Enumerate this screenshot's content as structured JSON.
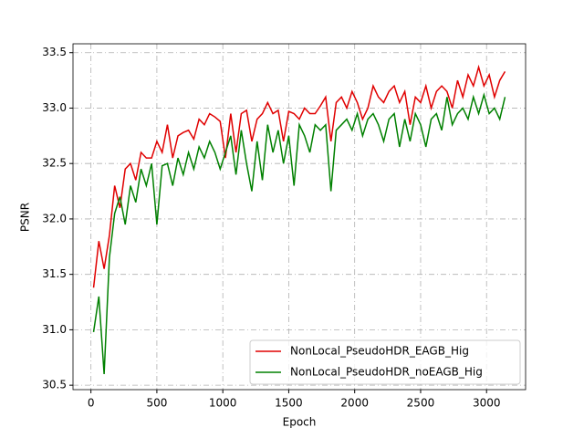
{
  "chart_data": {
    "type": "line",
    "xlabel": "Epoch",
    "ylabel": "PSNR",
    "x": [
      20,
      60,
      100,
      140,
      180,
      220,
      260,
      300,
      340,
      380,
      420,
      460,
      500,
      540,
      580,
      620,
      660,
      700,
      740,
      780,
      820,
      860,
      900,
      940,
      980,
      1020,
      1060,
      1100,
      1140,
      1180,
      1220,
      1260,
      1300,
      1340,
      1380,
      1420,
      1460,
      1500,
      1540,
      1580,
      1620,
      1660,
      1700,
      1740,
      1780,
      1820,
      1860,
      1900,
      1940,
      1980,
      2020,
      2060,
      2100,
      2140,
      2180,
      2220,
      2260,
      2300,
      2340,
      2380,
      2420,
      2460,
      2500,
      2540,
      2580,
      2620,
      2660,
      2700,
      2740,
      2780,
      2820,
      2860,
      2900,
      2940,
      2980,
      3020,
      3060,
      3100,
      3140
    ],
    "series": [
      {
        "name": "NonLocal_PseudoHDR_EAGB_Hig",
        "color": "#e00000",
        "values": [
          31.38,
          31.8,
          31.55,
          31.85,
          32.3,
          32.1,
          32.45,
          32.5,
          32.35,
          32.6,
          32.55,
          32.55,
          32.7,
          32.6,
          32.85,
          32.55,
          32.75,
          32.78,
          32.8,
          32.72,
          32.9,
          32.85,
          32.95,
          32.92,
          32.88,
          32.55,
          32.95,
          32.6,
          32.95,
          32.98,
          32.7,
          32.9,
          32.95,
          33.05,
          32.95,
          32.98,
          32.7,
          32.97,
          32.95,
          32.9,
          33.0,
          32.95,
          32.95,
          33.02,
          33.1,
          32.7,
          33.05,
          33.1,
          33.0,
          33.15,
          33.05,
          32.9,
          33.0,
          33.2,
          33.1,
          33.05,
          33.15,
          33.2,
          33.05,
          33.15,
          32.85,
          33.1,
          33.05,
          33.2,
          33.0,
          33.15,
          33.2,
          33.15,
          33.0,
          33.25,
          33.1,
          33.3,
          33.2,
          33.37,
          33.2,
          33.3,
          33.1,
          33.25,
          33.33
        ]
      },
      {
        "name": "NonLocal_PseudoHDR_noEAGB_Hig",
        "color": "#008000",
        "values": [
          30.98,
          31.3,
          30.6,
          31.65,
          32.05,
          32.2,
          31.95,
          32.3,
          32.15,
          32.45,
          32.3,
          32.5,
          31.95,
          32.48,
          32.5,
          32.3,
          32.55,
          32.4,
          32.6,
          32.45,
          32.65,
          32.55,
          32.7,
          32.6,
          32.45,
          32.6,
          32.75,
          32.4,
          32.8,
          32.5,
          32.25,
          32.7,
          32.35,
          32.85,
          32.6,
          32.8,
          32.5,
          32.75,
          32.3,
          32.85,
          32.75,
          32.6,
          32.85,
          32.8,
          32.85,
          32.25,
          32.8,
          32.85,
          32.9,
          32.8,
          32.95,
          32.75,
          32.9,
          32.95,
          32.85,
          32.7,
          32.9,
          32.95,
          32.65,
          32.9,
          32.7,
          32.95,
          32.85,
          32.65,
          32.9,
          32.95,
          32.8,
          33.1,
          32.85,
          32.95,
          33.0,
          32.9,
          33.1,
          32.95,
          33.12,
          32.95,
          33.0,
          32.9,
          33.1
        ]
      }
    ],
    "xlim": [
      -136,
      3296
    ],
    "ylim": [
      30.46,
      33.58
    ],
    "xticks": [
      0,
      500,
      1000,
      1500,
      2000,
      2500,
      3000
    ],
    "yticks": [
      30.5,
      {
        "value": 31,
        "label": "31.0"
      },
      31.5,
      {
        "value": 32,
        "label": "32.0"
      },
      32.5,
      {
        "value": 33,
        "label": "33.0"
      },
      33.5
    ],
    "grid": true,
    "legend": "lower right"
  }
}
